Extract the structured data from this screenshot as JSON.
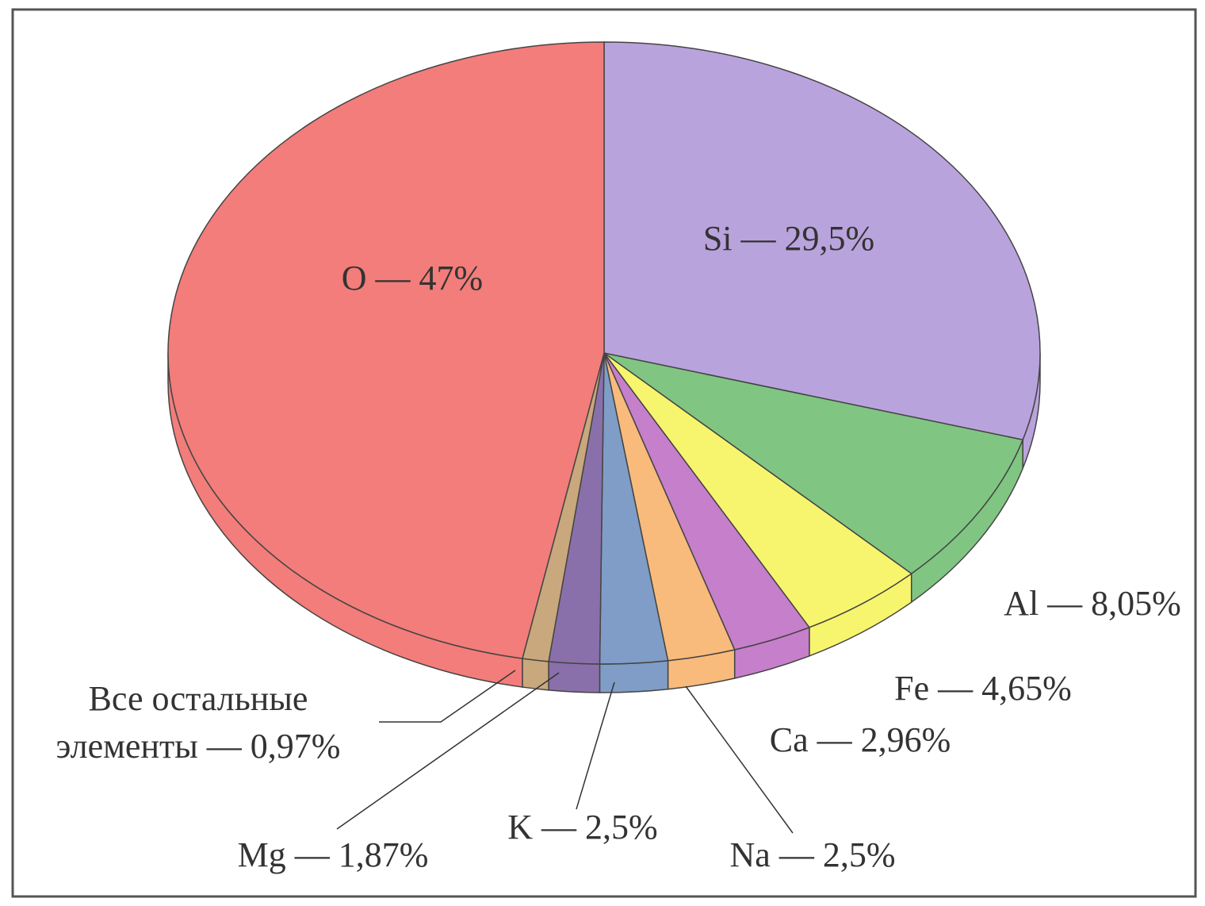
{
  "chart_data": {
    "type": "pie",
    "projection": "3d",
    "values": [
      29.5,
      8.05,
      4.65,
      2.96,
      2.5,
      2.5,
      1.87,
      0.97,
      47
    ],
    "value_labels": [
      "Si — 29,5%",
      "Al — 8,05%",
      "Fe — 4,65%",
      "Ca — 2,96%",
      "Na — 2,5%",
      "K  — 2,5%",
      "Mg — 1,87%",
      "Все остальные\nэлементы — 0,97%",
      "O — 47%"
    ],
    "colors": [
      "#b9a3dc",
      "#80c682",
      "#f7f56e",
      "#c67fcb",
      "#f8bb7c",
      "#7f9dc6",
      "#8a70aa",
      "#c8a87c",
      "#f27d7a"
    ]
  }
}
